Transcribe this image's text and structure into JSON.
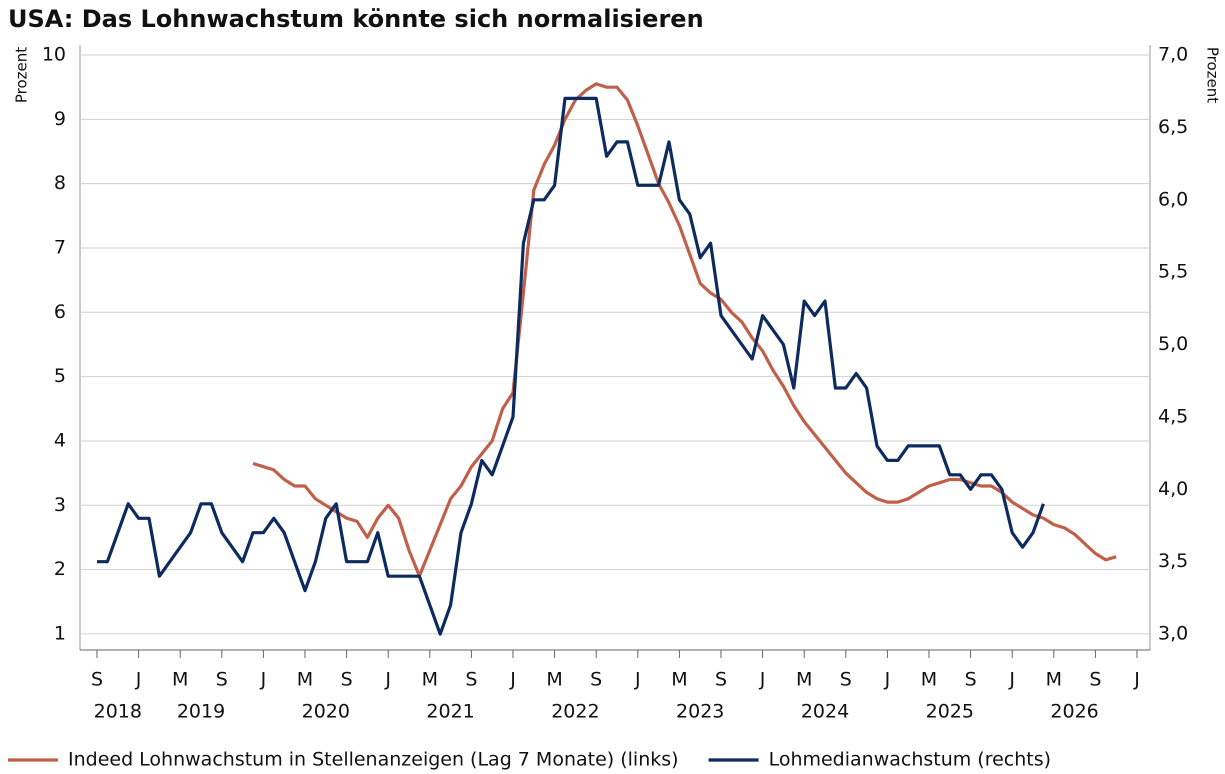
{
  "chart_data": {
    "type": "line",
    "title": "USA: Das Lohnwachstum könnte sich normalisieren",
    "y_label": "Prozent",
    "y2_label": "Prozent",
    "categories": [
      "2018-09",
      "2018-10",
      "2018-11",
      "2018-12",
      "2019-01",
      "2019-02",
      "2019-03",
      "2019-04",
      "2019-05",
      "2019-06",
      "2019-07",
      "2019-08",
      "2019-09",
      "2019-10",
      "2019-11",
      "2019-12",
      "2020-01",
      "2020-02",
      "2020-03",
      "2020-04",
      "2020-05",
      "2020-06",
      "2020-07",
      "2020-08",
      "2020-09",
      "2020-10",
      "2020-11",
      "2020-12",
      "2021-01",
      "2021-02",
      "2021-03",
      "2021-04",
      "2021-05",
      "2021-06",
      "2021-07",
      "2021-08",
      "2021-09",
      "2021-10",
      "2021-11",
      "2021-12",
      "2022-01",
      "2022-02",
      "2022-03",
      "2022-04",
      "2022-05",
      "2022-06",
      "2022-07",
      "2022-08",
      "2022-09",
      "2022-10",
      "2022-11",
      "2022-12",
      "2023-01",
      "2023-02",
      "2023-03",
      "2023-04",
      "2023-05",
      "2023-06",
      "2023-07",
      "2023-08",
      "2023-09",
      "2023-10",
      "2023-11",
      "2023-12",
      "2024-01",
      "2024-02",
      "2024-03",
      "2024-04",
      "2024-05",
      "2024-06",
      "2024-07",
      "2024-08",
      "2024-09",
      "2024-10",
      "2024-11",
      "2024-12",
      "2025-01",
      "2025-02",
      "2025-03",
      "2025-04",
      "2025-05",
      "2025-06",
      "2025-07",
      "2025-08",
      "2025-09",
      "2025-10",
      "2025-11",
      "2025-12",
      "2026-01",
      "2026-02",
      "2026-03",
      "2026-04",
      "2026-05",
      "2026-06",
      "2026-07",
      "2026-08",
      "2026-09",
      "2026-10",
      "2026-11",
      "2026-12",
      "2027-01"
    ],
    "xticks": [
      {
        "value": "2018-09",
        "label": "S"
      },
      {
        "value": "2019-01",
        "label": "J"
      },
      {
        "value": "2019-05",
        "label": "M"
      },
      {
        "value": "2019-09",
        "label": "S"
      },
      {
        "value": "2020-01",
        "label": "J"
      },
      {
        "value": "2020-05",
        "label": "M"
      },
      {
        "value": "2020-09",
        "label": "S"
      },
      {
        "value": "2021-01",
        "label": "J"
      },
      {
        "value": "2021-05",
        "label": "M"
      },
      {
        "value": "2021-09",
        "label": "S"
      },
      {
        "value": "2022-01",
        "label": "J"
      },
      {
        "value": "2022-05",
        "label": "M"
      },
      {
        "value": "2022-09",
        "label": "S"
      },
      {
        "value": "2023-01",
        "label": "J"
      },
      {
        "value": "2023-05",
        "label": "M"
      },
      {
        "value": "2023-09",
        "label": "S"
      },
      {
        "value": "2024-01",
        "label": "J"
      },
      {
        "value": "2024-05",
        "label": "M"
      },
      {
        "value": "2024-09",
        "label": "S"
      },
      {
        "value": "2025-01",
        "label": "J"
      },
      {
        "value": "2025-05",
        "label": "M"
      },
      {
        "value": "2025-09",
        "label": "S"
      },
      {
        "value": "2026-01",
        "label": "J"
      },
      {
        "value": "2026-05",
        "label": "M"
      },
      {
        "value": "2026-09",
        "label": "S"
      },
      {
        "value": "2027-01",
        "label": "J"
      }
    ],
    "years": [
      "2018",
      "2019",
      "2020",
      "2021",
      "2022",
      "2023",
      "2024",
      "2025",
      "2026"
    ],
    "ylim": [
      0.75,
      10
    ],
    "yticks": [
      1,
      2,
      3,
      4,
      5,
      6,
      7,
      8,
      9,
      10
    ],
    "y2lim": [
      2.89,
      7.0
    ],
    "y2ticks": [
      {
        "value": 3.0,
        "label": "3,0"
      },
      {
        "value": 3.5,
        "label": "3,5"
      },
      {
        "value": 4.0,
        "label": "4,0"
      },
      {
        "value": 4.5,
        "label": "4,5"
      },
      {
        "value": 5.0,
        "label": "5,0"
      },
      {
        "value": 5.5,
        "label": "5,5"
      },
      {
        "value": 6.0,
        "label": "6,0"
      },
      {
        "value": 6.5,
        "label": "6,5"
      },
      {
        "value": 7.0,
        "label": "7,0"
      }
    ],
    "grid": true,
    "legend": "bottom",
    "series": [
      {
        "name": "Indeed Lohnwachstum in Stellenanzeigen (Lag 7 Monate) (links)",
        "color": "#c0604a",
        "axis": "y",
        "values": [
          null,
          null,
          null,
          null,
          null,
          null,
          null,
          null,
          null,
          null,
          null,
          null,
          null,
          null,
          null,
          3.65,
          3.6,
          3.55,
          3.4,
          3.3,
          3.3,
          3.1,
          3.0,
          2.9,
          2.8,
          2.75,
          2.5,
          2.8,
          3.0,
          2.8,
          2.3,
          1.9,
          2.3,
          2.7,
          3.1,
          3.3,
          3.6,
          3.8,
          4.0,
          4.5,
          4.75,
          6.3,
          7.9,
          8.3,
          8.6,
          9.0,
          9.3,
          9.45,
          9.55,
          9.5,
          9.5,
          9.3,
          8.9,
          8.45,
          8.0,
          7.7,
          7.35,
          6.9,
          6.45,
          6.3,
          6.2,
          6.0,
          5.85,
          5.6,
          5.4,
          5.1,
          4.85,
          4.55,
          4.3,
          4.1,
          3.9,
          3.7,
          3.5,
          3.35,
          3.2,
          3.1,
          3.05,
          3.05,
          3.1,
          3.2,
          3.3,
          3.35,
          3.4,
          3.4,
          3.35,
          3.3,
          3.3,
          3.2,
          3.05,
          2.95,
          2.85,
          2.8,
          2.7,
          2.65,
          2.55,
          2.4,
          2.25,
          2.15,
          2.2,
          null,
          null
        ]
      },
      {
        "name": "Lohmedianwachstum (rechts)",
        "color": "#0d2b5e",
        "axis": "y2",
        "values": [
          3.5,
          3.5,
          3.7,
          3.9,
          3.8,
          3.8,
          3.4,
          3.5,
          3.6,
          3.7,
          3.9,
          3.9,
          3.7,
          3.6,
          3.5,
          3.7,
          3.7,
          3.8,
          3.7,
          3.5,
          3.3,
          3.5,
          3.8,
          3.9,
          3.5,
          3.5,
          3.5,
          3.7,
          3.4,
          3.4,
          3.4,
          3.4,
          3.2,
          3.0,
          3.2,
          3.7,
          3.9,
          4.2,
          4.1,
          4.3,
          4.5,
          5.7,
          6.0,
          6.0,
          6.1,
          6.7,
          6.7,
          6.7,
          6.7,
          6.3,
          6.4,
          6.4,
          6.1,
          6.1,
          6.1,
          6.4,
          6.0,
          5.9,
          5.6,
          5.7,
          5.2,
          5.1,
          5.0,
          4.9,
          5.2,
          5.1,
          5.0,
          4.7,
          5.3,
          5.2,
          5.3,
          4.7,
          4.7,
          4.8,
          4.7,
          4.3,
          4.2,
          4.2,
          4.3,
          4.3,
          4.3,
          4.3,
          4.1,
          4.1,
          4.0,
          4.1,
          4.1,
          4.0,
          3.7,
          3.6,
          3.7,
          3.9,
          null,
          null,
          null,
          null,
          null,
          null,
          null,
          null,
          null
        ]
      }
    ]
  }
}
